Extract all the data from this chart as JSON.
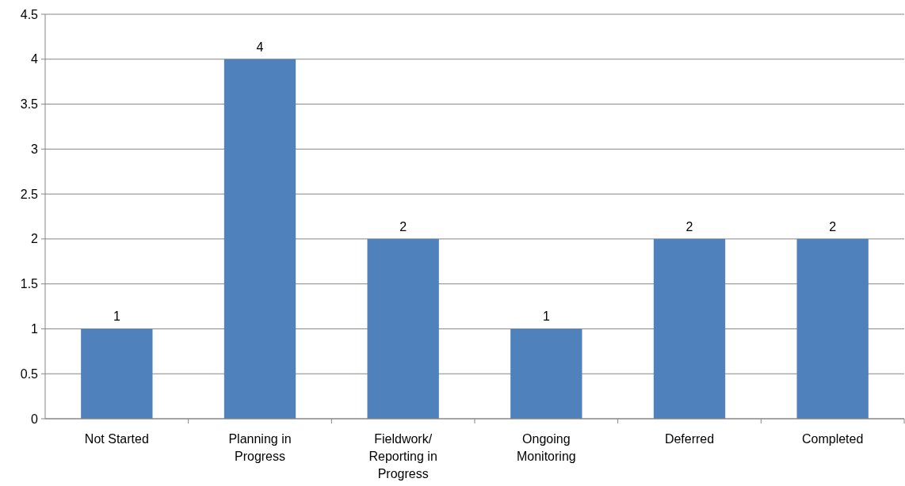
{
  "chart_data": {
    "type": "bar",
    "categories": [
      "Not Started",
      "Planning in Progress",
      "Fieldwork/ Reporting in Progress",
      "Ongoing Monitoring",
      "Deferred",
      "Completed"
    ],
    "values": [
      1,
      4,
      2,
      1,
      2,
      2
    ],
    "color": "#4f81bd",
    "ylim": [
      0,
      4.5
    ],
    "yticks": [
      0,
      0.5,
      1,
      1.5,
      2,
      2.5,
      3,
      3.5,
      4,
      4.5
    ],
    "grid": "y",
    "data_labels": true
  }
}
